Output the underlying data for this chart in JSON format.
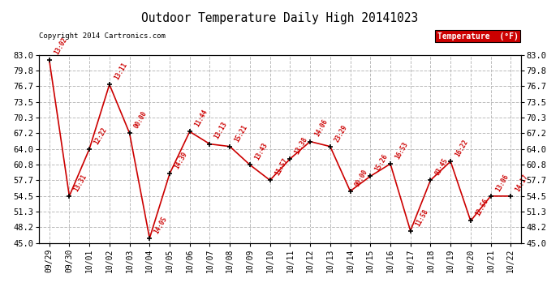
{
  "title": "Outdoor Temperature Daily High 20141023",
  "copyright_text": "Copyright 2014 Cartronics.com",
  "legend_label": "Temperature  (°F)",
  "dates": [
    "09/29",
    "09/30",
    "10/01",
    "10/02",
    "10/03",
    "10/04",
    "10/05",
    "10/06",
    "10/07",
    "10/08",
    "10/09",
    "10/10",
    "10/11",
    "10/12",
    "10/13",
    "10/14",
    "10/15",
    "10/16",
    "10/17",
    "10/18",
    "10/19",
    "10/20",
    "10/21",
    "10/22"
  ],
  "temperatures": [
    82.0,
    54.5,
    64.0,
    77.0,
    67.2,
    46.0,
    59.0,
    67.5,
    65.0,
    64.5,
    60.8,
    57.7,
    62.0,
    65.5,
    64.5,
    55.5,
    58.5,
    61.0,
    47.5,
    57.7,
    61.5,
    49.5,
    54.5,
    54.5
  ],
  "time_labels": [
    "13:02",
    "13:31",
    "12:22",
    "13:11",
    "00:00",
    "14:05",
    "14:39",
    "11:44",
    "13:13",
    "15:21",
    "13:43",
    "11:57",
    "13:38",
    "14:06",
    "23:29",
    "00:00",
    "15:26",
    "16:53",
    "11:58",
    "03:45",
    "16:22",
    "12:56",
    "13:06",
    "14:17"
  ],
  "ylim": [
    45.0,
    83.0
  ],
  "yticks": [
    45.0,
    48.2,
    51.3,
    54.5,
    57.7,
    60.8,
    64.0,
    67.2,
    70.3,
    73.5,
    76.7,
    79.8,
    83.0
  ],
  "line_color": "#cc0000",
  "marker_color": "#000000",
  "label_color": "#cc0000",
  "bg_color": "#ffffff",
  "grid_color": "#bbbbbb",
  "title_color": "#000000",
  "legend_bg": "#cc0000",
  "legend_text_color": "#ffffff",
  "figsize": [
    6.9,
    3.75
  ],
  "dpi": 100
}
